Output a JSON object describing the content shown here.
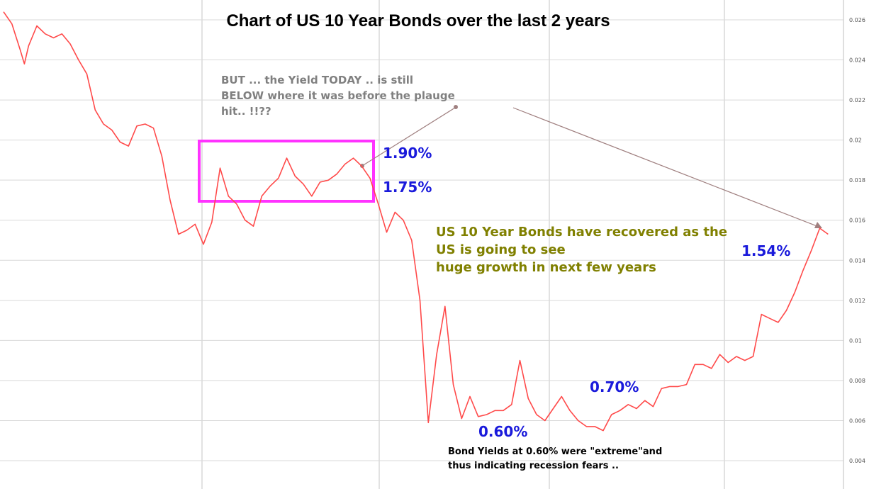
{
  "colors": {
    "line": "#ff4a4a",
    "grid": "#d9d9d9",
    "box": "#ff33ff",
    "arrow": "#a08080",
    "pct_label": "#1a1adb",
    "note_grey": "#808080",
    "note_olive": "#808000"
  },
  "chart_data": {
    "type": "line",
    "title": "Chart of US 10 Year Bonds over the last 2 years",
    "xlabel": "",
    "ylabel": "",
    "y_ticks": [
      "0.026",
      "0.024",
      "0.022",
      "0.02",
      "0.018",
      "0.016",
      "0.014",
      "0.012",
      "0.01",
      "0.008",
      "0.006",
      "0.004"
    ],
    "ylim": [
      0.0035,
      0.0265
    ],
    "grid": true,
    "x_range": [
      0,
      100
    ],
    "series": [
      {
        "x": [
          0,
          1,
          2,
          2.5,
          3,
          4,
          5,
          6,
          7,
          8,
          9,
          10,
          11,
          12,
          13,
          14,
          15,
          16,
          17,
          18,
          19,
          20,
          21,
          22,
          23,
          24,
          25,
          26,
          27,
          28,
          29,
          30,
          31,
          32,
          33,
          34,
          35,
          36,
          37,
          38,
          39,
          40,
          41,
          42,
          43,
          44,
          45,
          46,
          47,
          48,
          49,
          50,
          51,
          52,
          53,
          54,
          55,
          56,
          57,
          58,
          59,
          60,
          61,
          62,
          63,
          64,
          65,
          66,
          67,
          68,
          69,
          70,
          71,
          72,
          73,
          74,
          75,
          76,
          77,
          78,
          79,
          80,
          81,
          82,
          83,
          84,
          85,
          86,
          87,
          88,
          89,
          90,
          91,
          92,
          93,
          94,
          95,
          96,
          97,
          98,
          99
        ],
        "y": [
          0.0264,
          0.0258,
          0.0245,
          0.0238,
          0.0247,
          0.0257,
          0.0253,
          0.0251,
          0.0253,
          0.0248,
          0.024,
          0.0233,
          0.0215,
          0.0208,
          0.0205,
          0.0199,
          0.0197,
          0.0207,
          0.0208,
          0.0206,
          0.0192,
          0.017,
          0.0153,
          0.0155,
          0.0158,
          0.0148,
          0.0159,
          0.0186,
          0.0172,
          0.0168,
          0.016,
          0.0157,
          0.0172,
          0.0177,
          0.0181,
          0.0191,
          0.0182,
          0.0178,
          0.0172,
          0.0179,
          0.018,
          0.0183,
          0.0188,
          0.0191,
          0.0187,
          0.0181,
          0.0168,
          0.0154,
          0.0164,
          0.016,
          0.015,
          0.012,
          0.0059,
          0.0093,
          0.0117,
          0.0078,
          0.0061,
          0.0072,
          0.0062,
          0.0063,
          0.0065,
          0.0065,
          0.0068,
          0.009,
          0.0071,
          0.0063,
          0.006,
          0.0066,
          0.0072,
          0.0065,
          0.006,
          0.0057,
          0.0057,
          0.0055,
          0.0063,
          0.0065,
          0.0068,
          0.0066,
          0.007,
          0.0067,
          0.0076,
          0.0077,
          0.0077,
          0.0078,
          0.0088,
          0.0088,
          0.0086,
          0.0093,
          0.0089,
          0.0092,
          0.009,
          0.0092,
          0.0113,
          0.0111,
          0.0109,
          0.0115,
          0.0124,
          0.0135,
          0.0145,
          0.0156,
          0.0153
        ]
      }
    ],
    "annotations": {
      "note_top": [
        "BUT ... the Yield TODAY .. is still",
        "BELOW where it was before the plauge",
        "hit.. !!??"
      ],
      "note_middle": [
        "US 10 Year Bonds have recovered as the",
        "US  is going to see",
        "huge growth in next few years"
      ],
      "note_bottom": [
        "Bond Yields at 0.60% were \"extreme\"and",
        "thus  indicating recession fears .."
      ],
      "pct_190": "1.90%",
      "pct_175": "1.75%",
      "pct_154": "1.54%",
      "pct_070": "0.70%",
      "pct_060": "0.60%"
    }
  }
}
